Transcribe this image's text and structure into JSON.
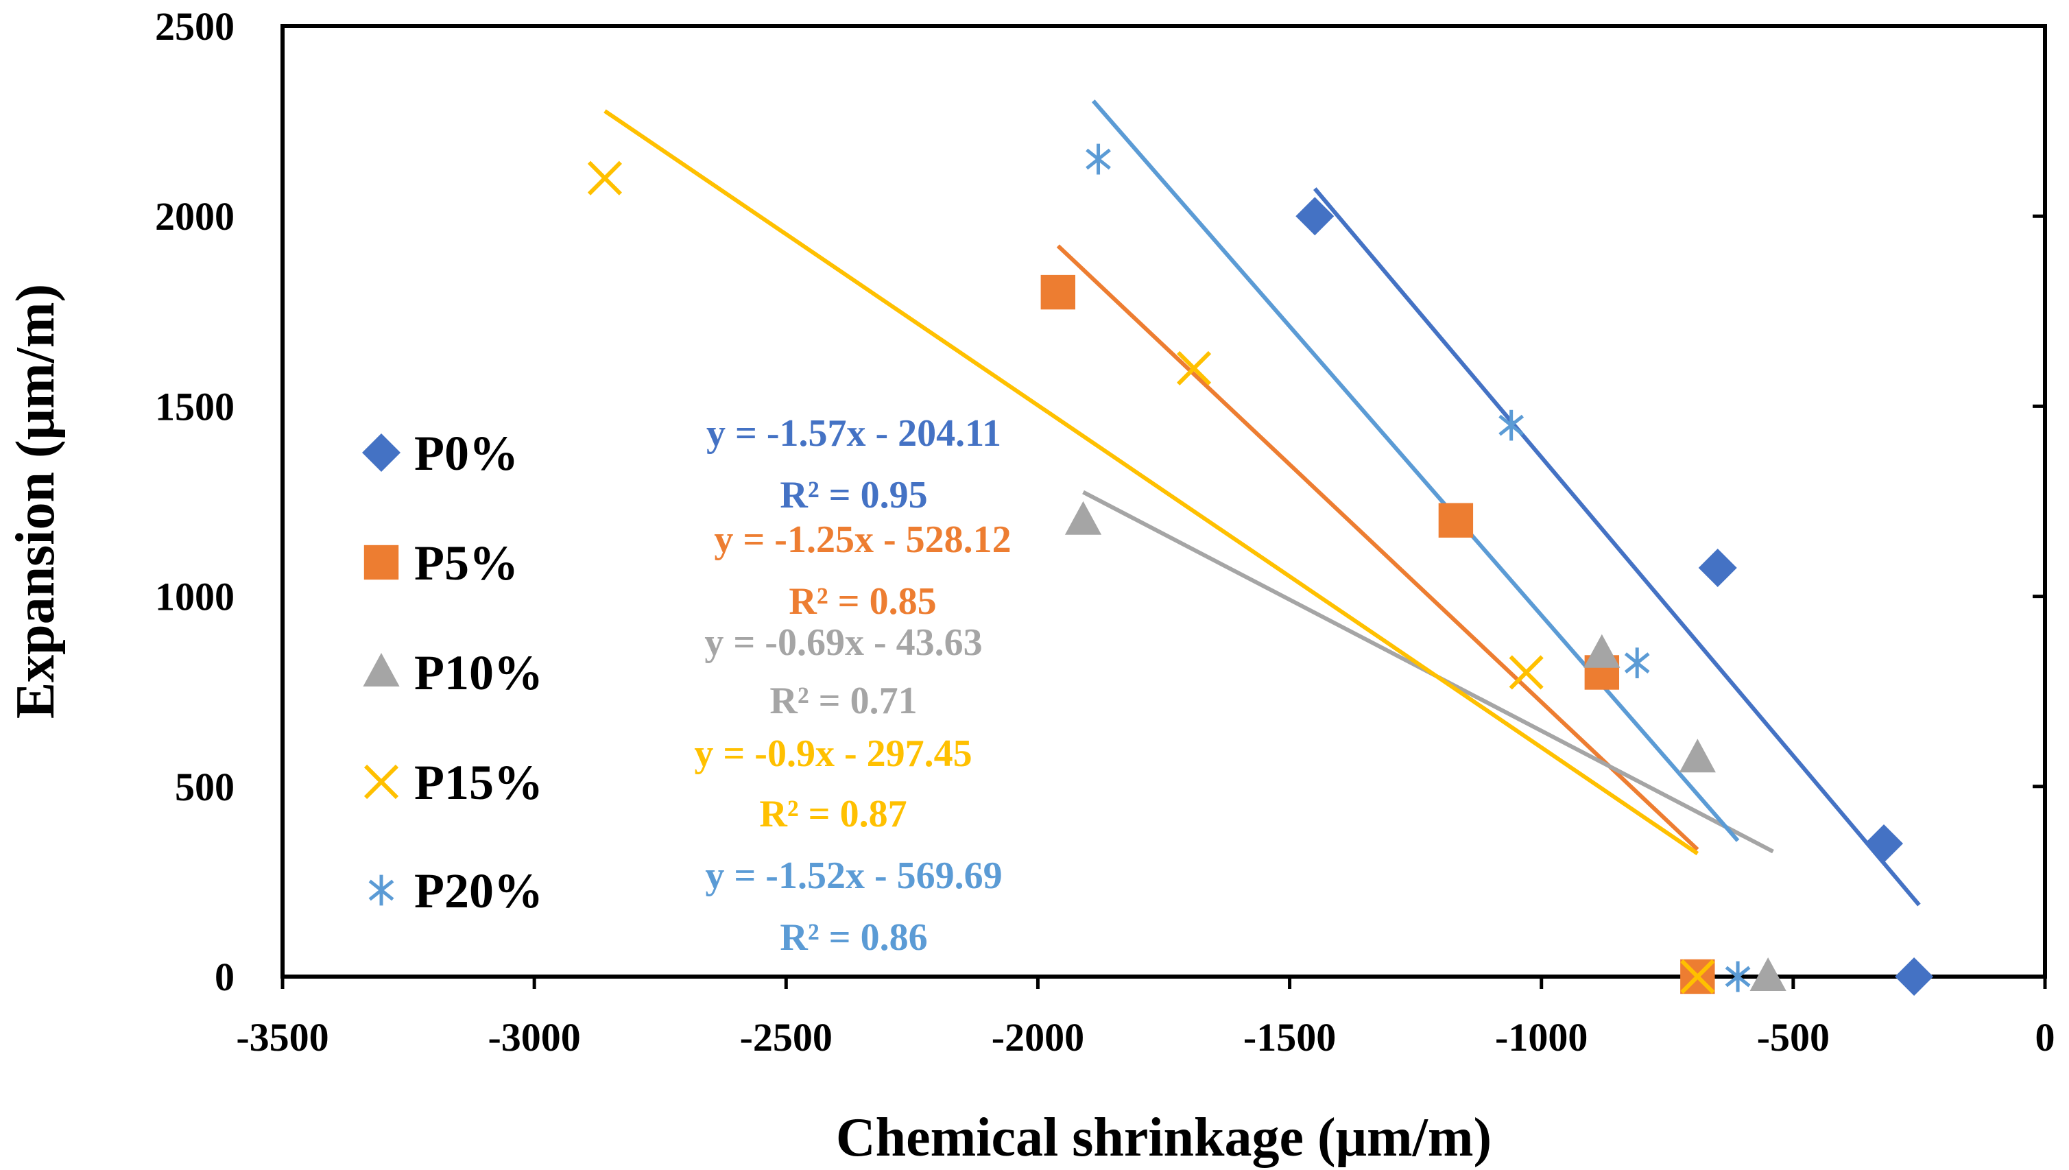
{
  "chart_data": {
    "type": "scatter",
    "xlabel": "Chemical shrinkage (μm/m)",
    "ylabel": "Expansion (μm/m)",
    "xlim": [
      -3500,
      0
    ],
    "ylim": [
      0,
      2500
    ],
    "x_ticks": [
      -3500,
      -3000,
      -2500,
      -2000,
      -1500,
      -1000,
      -500,
      0
    ],
    "y_ticks": [
      0,
      500,
      1000,
      1500,
      2000,
      2500
    ],
    "x_tick_labels": [
      "-3500",
      "-3000",
      "-2500",
      "-2000",
      "-1500",
      "-1000",
      "-500",
      "0"
    ],
    "y_tick_labels": [
      "0",
      "500",
      "1000",
      "1500",
      "2000",
      "2500"
    ],
    "grid": false,
    "legend_position": "left",
    "series": [
      {
        "name": "P0%",
        "color": "#4472C4",
        "marker": "diamond",
        "points": [
          [
            -1450,
            2000
          ],
          [
            -650,
            1075
          ],
          [
            -320,
            350
          ],
          [
            -260,
            0
          ]
        ],
        "trend": {
          "x_range": [
            -1450,
            -250
          ],
          "equation": "y = -1.57x - 204.11",
          "r2": "R² = 0.95"
        }
      },
      {
        "name": "P5%",
        "color": "#ED7D31",
        "marker": "square",
        "points": [
          [
            -1960,
            1800
          ],
          [
            -1170,
            1200
          ],
          [
            -880,
            800
          ],
          [
            -690,
            0
          ]
        ],
        "trend": {
          "x_range": [
            -1960,
            -690
          ],
          "equation": "y = -1.25x - 528.12",
          "r2": "R² = 0.85"
        }
      },
      {
        "name": "P10%",
        "color": "#A5A5A5",
        "marker": "triangle",
        "points": [
          [
            -1910,
            1200
          ],
          [
            -880,
            850
          ],
          [
            -690,
            575
          ],
          [
            -550,
            0
          ]
        ],
        "trend": {
          "x_range": [
            -1910,
            -540
          ],
          "equation": "y = -0.69x - 43.63",
          "r2": "R² = 0.71"
        }
      },
      {
        "name": "P15%",
        "color": "#FFC000",
        "marker": "x",
        "points": [
          [
            -2860,
            2100
          ],
          [
            -1690,
            1600
          ],
          [
            -1030,
            800
          ],
          [
            -690,
            0
          ]
        ],
        "trend": {
          "x_range": [
            -2860,
            -690
          ],
          "equation": "y = -0.9x - 297.45",
          "r2": "R² = 0.87"
        }
      },
      {
        "name": "P20%",
        "color": "#5B9BD5",
        "marker": "star",
        "points": [
          [
            -1880,
            2150
          ],
          [
            -1060,
            1450
          ],
          [
            -810,
            825
          ],
          [
            -610,
            0
          ]
        ],
        "trend": {
          "x_range": [
            -1890,
            -610
          ],
          "equation": "y = -1.52x - 569.69",
          "r2": "R² = 0.86"
        }
      }
    ]
  }
}
